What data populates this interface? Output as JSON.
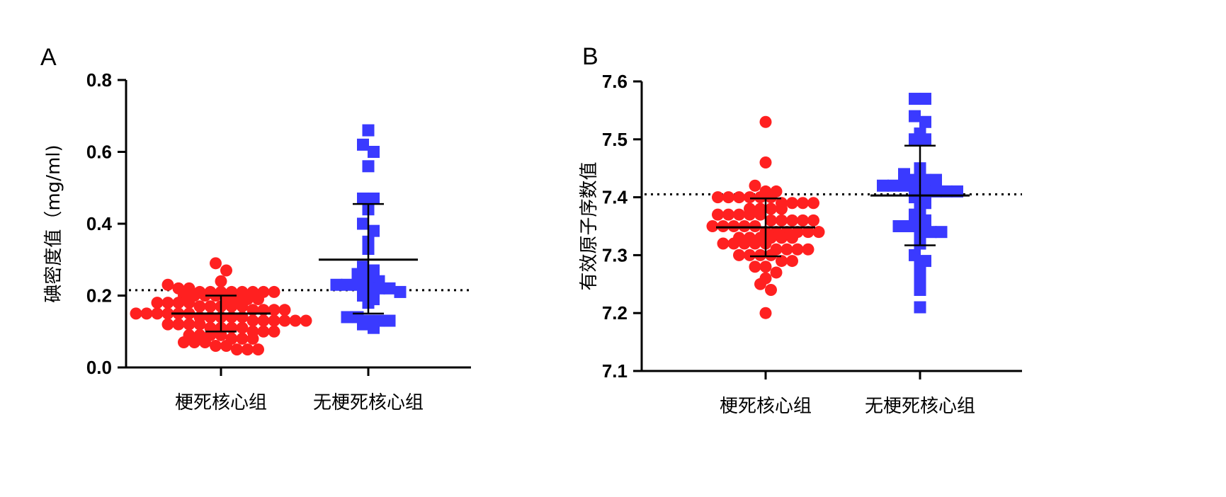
{
  "chart_data": [
    {
      "panel": "A",
      "type": "scatter",
      "ylabel": "碘密度值（mg/ml)",
      "ylim": [
        0.0,
        0.8
      ],
      "yticks": [
        "0.0",
        "0.2",
        "0.4",
        "0.6",
        "0.8"
      ],
      "categories": [
        "梗死核心组",
        "无梗死核心组"
      ],
      "reference_line": 0.215,
      "series": [
        {
          "marker": "circle",
          "color": "#ff2020",
          "mean": 0.15,
          "sd_low": 0.1,
          "sd_high": 0.2,
          "values": [
            0.29,
            0.27,
            0.24,
            0.23,
            0.22,
            0.22,
            0.21,
            0.21,
            0.21,
            0.21,
            0.21,
            0.21,
            0.21,
            0.21,
            0.2,
            0.2,
            0.2,
            0.2,
            0.19,
            0.19,
            0.19,
            0.19,
            0.18,
            0.18,
            0.18,
            0.18,
            0.17,
            0.17,
            0.17,
            0.17,
            0.17,
            0.16,
            0.16,
            0.16,
            0.16,
            0.15,
            0.15,
            0.15,
            0.15,
            0.15,
            0.15,
            0.14,
            0.14,
            0.14,
            0.14,
            0.14,
            0.13,
            0.13,
            0.13,
            0.13,
            0.13,
            0.13,
            0.12,
            0.12,
            0.12,
            0.12,
            0.11,
            0.11,
            0.11,
            0.11,
            0.1,
            0.1,
            0.1,
            0.09,
            0.09,
            0.09,
            0.09,
            0.08,
            0.08,
            0.08,
            0.07,
            0.07,
            0.07,
            0.06,
            0.06,
            0.05,
            0.05,
            0.05
          ]
        },
        {
          "marker": "square",
          "color": "#3a3aff",
          "mean": 0.3,
          "sd_low": 0.15,
          "sd_high": 0.455,
          "values": [
            0.66,
            0.62,
            0.6,
            0.56,
            0.47,
            0.47,
            0.44,
            0.4,
            0.38,
            0.35,
            0.33,
            0.28,
            0.27,
            0.26,
            0.25,
            0.24,
            0.23,
            0.23,
            0.23,
            0.22,
            0.22,
            0.22,
            0.21,
            0.2,
            0.19,
            0.18,
            0.14,
            0.14,
            0.13,
            0.13,
            0.13,
            0.12,
            0.11
          ]
        }
      ]
    },
    {
      "panel": "B",
      "type": "scatter",
      "ylabel": "有效原子序数值",
      "ylim": [
        7.1,
        7.6
      ],
      "yticks": [
        "7.1",
        "7.2",
        "7.3",
        "7.4",
        "7.5",
        "7.6"
      ],
      "categories": [
        "梗死核心组",
        "无梗死核心组"
      ],
      "reference_line": 7.405,
      "series": [
        {
          "marker": "circle",
          "color": "#ff2020",
          "mean": 7.348,
          "sd_low": 7.298,
          "sd_high": 7.398,
          "values": [
            7.53,
            7.46,
            7.42,
            7.41,
            7.41,
            7.4,
            7.4,
            7.4,
            7.4,
            7.4,
            7.4,
            7.39,
            7.39,
            7.39,
            7.39,
            7.38,
            7.38,
            7.38,
            7.38,
            7.37,
            7.37,
            7.37,
            7.37,
            7.37,
            7.36,
            7.36,
            7.36,
            7.36,
            7.36,
            7.35,
            7.35,
            7.35,
            7.35,
            7.35,
            7.34,
            7.34,
            7.34,
            7.34,
            7.34,
            7.34,
            7.33,
            7.33,
            7.33,
            7.33,
            7.33,
            7.33,
            7.32,
            7.32,
            7.32,
            7.32,
            7.32,
            7.31,
            7.31,
            7.31,
            7.31,
            7.3,
            7.3,
            7.3,
            7.3,
            7.29,
            7.29,
            7.28,
            7.28,
            7.27,
            7.26,
            7.25,
            7.24,
            7.2
          ]
        },
        {
          "marker": "square",
          "color": "#3a3aff",
          "mean": 7.403,
          "sd_low": 7.317,
          "sd_high": 7.489,
          "values": [
            7.57,
            7.57,
            7.54,
            7.53,
            7.51,
            7.5,
            7.5,
            7.45,
            7.44,
            7.43,
            7.43,
            7.43,
            7.42,
            7.42,
            7.42,
            7.41,
            7.41,
            7.41,
            7.41,
            7.41,
            7.4,
            7.39,
            7.38,
            7.37,
            7.36,
            7.35,
            7.35,
            7.35,
            7.34,
            7.34,
            7.33,
            7.32,
            7.3,
            7.29,
            7.28,
            7.26,
            7.24,
            7.21
          ]
        }
      ]
    }
  ]
}
